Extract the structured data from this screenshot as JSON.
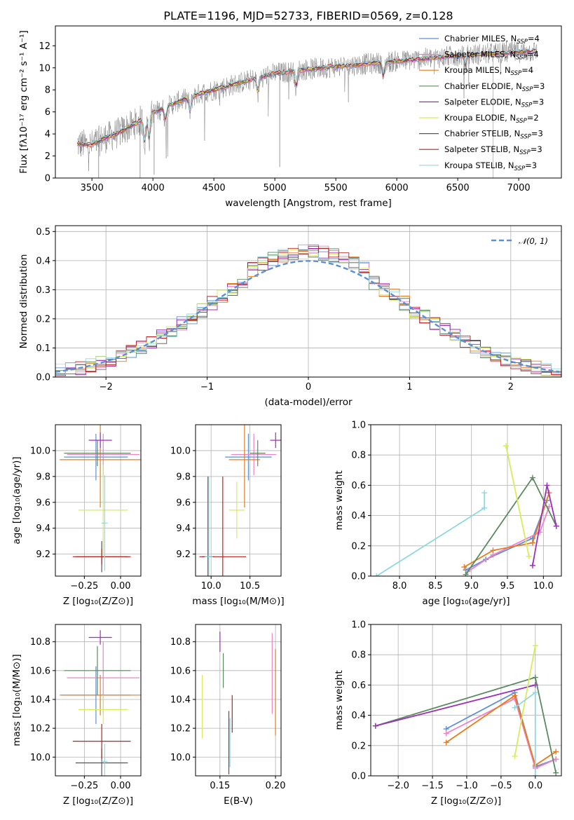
{
  "figure": {
    "title": "PLATE=1196, MJD=52733, FIBERID=0569, z=0.128",
    "colors": {
      "Chabrier MILES": "#5f8fd6",
      "Salpeter MILES": "#ee82c8",
      "Kroupa MILES": "#e87b1a",
      "Chabrier ELODIE": "#5b8a60",
      "Salpeter ELODIE": "#9b30b8",
      "Kroupa ELODIE": "#d8ec58",
      "Chabrier STELIB": "#555555",
      "Salpeter STELIB": "#c02020",
      "Kroupa STELIB": "#8fd8e0",
      "gaussian": "#5b8fd6",
      "spectrum": "#808080"
    }
  },
  "chart_data": [
    {
      "id": "spectrum",
      "type": "line",
      "title": "PLATE=1196, MJD=52733, FIBERID=0569, z=0.128",
      "xlabel": "wavelength [Angstrom, rest frame]",
      "ylabel": "Flux [fλ10⁻¹⁷ erg cm⁻² s⁻¹ A⁻¹]",
      "xlim": [
        3200,
        7350
      ],
      "ylim": [
        0,
        13.8
      ],
      "xticks": [
        3500,
        4000,
        4500,
        5000,
        5500,
        6000,
        6500,
        7000
      ],
      "yticks": [
        0,
        2,
        4,
        6,
        8,
        10,
        12
      ],
      "legend_position": "top-right",
      "legend": [
        {
          "base": "Chabrier MILES, N",
          "n": "4"
        },
        {
          "base": "Salpeter MILES, N",
          "n": "4"
        },
        {
          "base": "Kroupa MILES, N",
          "n": "4"
        },
        {
          "base": "Chabrier ELODIE, N",
          "n": "3"
        },
        {
          "base": "Salpeter ELODIE, N",
          "n": "3"
        },
        {
          "base": "Kroupa ELODIE, N",
          "n": "2"
        },
        {
          "base": "Chabrier STELIB, N",
          "n": "3"
        },
        {
          "base": "Salpeter STELIB, N",
          "n": "3"
        },
        {
          "base": "Kroupa STELIB, N",
          "n": "3"
        }
      ],
      "continuum": {
        "x": [
          3380,
          3500,
          3600,
          3700,
          3800,
          3900,
          4000,
          4100,
          4200,
          4300,
          4400,
          4500,
          4600,
          4700,
          4800,
          4900,
          5000,
          5100,
          5200,
          5300,
          5400,
          5500,
          5600,
          5700,
          5800,
          5900,
          6000,
          6200,
          6400,
          6600,
          6800,
          7000,
          7150
        ],
        "y": [
          3.1,
          3.0,
          3.6,
          4.0,
          4.6,
          5.2,
          5.9,
          6.4,
          6.9,
          7.3,
          7.7,
          8.0,
          8.3,
          8.6,
          8.9,
          9.2,
          9.5,
          9.6,
          9.8,
          9.9,
          10.0,
          10.1,
          10.2,
          10.3,
          10.4,
          10.5,
          10.6,
          10.8,
          11.0,
          11.2,
          11.3,
          11.4,
          11.5
        ]
      }
    },
    {
      "id": "residuals",
      "type": "histogram",
      "xlabel": "(data-model)/error",
      "ylabel": "Normed distribution",
      "xlim": [
        -2.5,
        2.5
      ],
      "ylim": [
        0,
        0.52
      ],
      "xticks": [
        -2,
        -1,
        0,
        1,
        2
      ],
      "yticks": [
        0.0,
        0.1,
        0.2,
        0.3,
        0.4,
        0.5
      ],
      "legend_position": "top-right",
      "gaussian_label": "𝒩(0, 1)",
      "bin_width": 0.1
    },
    {
      "id": "age_vs_Z",
      "type": "errorbar",
      "xlabel": "Z [log₁₀(Z/Z⊙)]",
      "ylabel": "age  [log₁₀(age/yr)]",
      "xlim": [
        -0.45,
        0.14
      ],
      "ylim": [
        9.03,
        10.2
      ],
      "xticks": [
        -0.25,
        0.0
      ],
      "yticks": [
        9.2,
        9.4,
        9.6,
        9.8,
        10.0
      ],
      "points": [
        {
          "model": "Chabrier MILES",
          "x": -0.17,
          "y": 9.95,
          "xerr": 0.22,
          "yerr": 0.18
        },
        {
          "model": "Salpeter MILES",
          "x": -0.12,
          "y": 9.97,
          "xerr": 0.25,
          "yerr": 0.16
        },
        {
          "model": "Kroupa MILES",
          "x": -0.14,
          "y": 9.93,
          "xerr": 0.28,
          "yerr": 0.37
        },
        {
          "model": "Chabrier ELODIE",
          "x": -0.16,
          "y": 9.98,
          "xerr": 0.23,
          "yerr": 0.1
        },
        {
          "model": "Salpeter ELODIE",
          "x": -0.14,
          "y": 10.08,
          "xerr": 0.08,
          "yerr": 0.06
        },
        {
          "model": "Kroupa ELODIE",
          "x": -0.12,
          "y": 9.54,
          "xerr": 0.17,
          "yerr": 0.35
        },
        {
          "model": "Chabrier STELIB",
          "x": -0.13,
          "y": 9.18,
          "xerr": 0.18,
          "yerr": 0.12
        },
        {
          "model": "Salpeter STELIB",
          "x": -0.13,
          "y": 9.18,
          "xerr": 0.2,
          "yerr": 0.06
        },
        {
          "model": "Kroupa STELIB",
          "x": -0.11,
          "y": 9.44,
          "xerr": 0.02,
          "yerr": 0.37
        }
      ]
    },
    {
      "id": "age_vs_mass",
      "type": "errorbar",
      "xlabel": "mass [log₁₀(M/M⊙)]",
      "xlim": [
        9.8,
        10.9
      ],
      "ylim": [
        9.03,
        10.2
      ],
      "xticks": [
        10.0,
        10.5
      ],
      "yticks": [
        9.2,
        9.4,
        9.6,
        9.8,
        10.0
      ],
      "points": [
        {
          "model": "Chabrier MILES",
          "x": 10.48,
          "y": 9.95,
          "xerr": 0.3,
          "yerr": 0.18
        },
        {
          "model": "Salpeter MILES",
          "x": 10.55,
          "y": 9.97,
          "xerr": 0.29,
          "yerr": 0.16
        },
        {
          "model": "Kroupa MILES",
          "x": 10.43,
          "y": 9.93,
          "xerr": 0.2,
          "yerr": 0.37
        },
        {
          "model": "Chabrier ELODIE",
          "x": 10.6,
          "y": 9.98,
          "xerr": 0.1,
          "yerr": 0.1
        },
        {
          "model": "Salpeter ELODIE",
          "x": 10.83,
          "y": 10.08,
          "xerr": 0.07,
          "yerr": 0.06
        },
        {
          "model": "Kroupa ELODIE",
          "x": 10.33,
          "y": 9.54,
          "xerr": 0.1,
          "yerr": 0.22
        },
        {
          "model": "Chabrier STELIB",
          "x": 9.96,
          "y": 9.18,
          "xerr": 0.08,
          "yerr": 0.62
        },
        {
          "model": "Salpeter STELIB",
          "x": 10.15,
          "y": 9.18,
          "xerr": 0.3,
          "yerr": 0.62
        },
        {
          "model": "Kroupa STELIB",
          "x": 9.97,
          "y": 9.18,
          "xerr": 0.05,
          "yerr": 0.62
        }
      ]
    },
    {
      "id": "weight_vs_age",
      "type": "line",
      "xlabel": "age  [log₁₀(age/yr)]",
      "ylabel": "mass weight",
      "xlim": [
        7.6,
        10.25
      ],
      "ylim": [
        0,
        1.0
      ],
      "xticks": [
        8.0,
        8.5,
        9.0,
        9.5,
        10.0
      ],
      "yticks": [
        0.0,
        0.2,
        0.4,
        0.6,
        0.8,
        1.0
      ],
      "series": [
        {
          "model": "Kroupa STELIB",
          "x": [
            7.68,
            9.18,
            9.18
          ],
          "y": [
            0.0,
            0.45,
            0.55
          ]
        },
        {
          "model": "Chabrier MILES",
          "x": [
            8.92,
            9.2,
            9.85,
            10.05
          ],
          "y": [
            0.04,
            0.11,
            0.25,
            0.5
          ]
        },
        {
          "model": "Salpeter MILES",
          "x": [
            8.95,
            9.3,
            9.95,
            10.08
          ],
          "y": [
            0.03,
            0.14,
            0.29,
            0.46
          ]
        },
        {
          "model": "Kroupa MILES",
          "x": [
            8.9,
            9.3,
            9.85,
            10.08
          ],
          "y": [
            0.06,
            0.17,
            0.22,
            0.55
          ]
        },
        {
          "model": "Chabrier ELODIE",
          "x": [
            8.92,
            9.85,
            10.18
          ],
          "y": [
            0.01,
            0.65,
            0.33
          ]
        },
        {
          "model": "Salpeter ELODIE",
          "x": [
            9.85,
            10.05,
            10.18
          ],
          "y": [
            0.07,
            0.6,
            0.33
          ]
        },
        {
          "model": "Kroupa ELODIE",
          "x": [
            9.48,
            9.8
          ],
          "y": [
            0.86,
            0.13
          ]
        }
      ]
    },
    {
      "id": "mass_vs_Z",
      "type": "errorbar",
      "xlabel": "Z [log₁₀(Z/Z⊙)]",
      "ylabel": "mass [log₁₀(M/M⊙)]",
      "xlim": [
        -0.45,
        0.14
      ],
      "ylim": [
        9.87,
        10.92
      ],
      "xticks": [
        -0.25,
        0.0
      ],
      "yticks": [
        10.0,
        10.2,
        10.4,
        10.6,
        10.8
      ],
      "points": [
        {
          "model": "Chabrier MILES",
          "x": -0.17,
          "y": 10.43,
          "xerr": 0.24,
          "yerr": 0.2
        },
        {
          "model": "Salpeter MILES",
          "x": -0.12,
          "y": 10.55,
          "xerr": 0.25,
          "yerr": 0.25
        },
        {
          "model": "Kroupa MILES",
          "x": -0.14,
          "y": 10.43,
          "xerr": 0.28,
          "yerr": 0.14
        },
        {
          "model": "Chabrier ELODIE",
          "x": -0.16,
          "y": 10.6,
          "xerr": 0.23,
          "yerr": 0.17
        },
        {
          "model": "Salpeter ELODIE",
          "x": -0.14,
          "y": 10.83,
          "xerr": 0.08,
          "yerr": 0.05
        },
        {
          "model": "Kroupa ELODIE",
          "x": -0.12,
          "y": 10.33,
          "xerr": 0.17,
          "yerr": 0.1
        },
        {
          "model": "Chabrier STELIB",
          "x": -0.13,
          "y": 9.96,
          "xerr": 0.18,
          "yerr": 0.1
        },
        {
          "model": "Salpeter STELIB",
          "x": -0.13,
          "y": 10.11,
          "xerr": 0.2,
          "yerr": 0.12
        },
        {
          "model": "Kroupa STELIB",
          "x": -0.11,
          "y": 9.97,
          "xerr": 0.02,
          "yerr": 0.12
        }
      ]
    },
    {
      "id": "mass_vs_ebv",
      "type": "errorbar",
      "xlabel": "E(B-V)",
      "xlim": [
        0.128,
        0.205
      ],
      "ylim": [
        9.87,
        10.92
      ],
      "xticks": [
        0.15,
        0.2
      ],
      "yticks": [
        10.0,
        10.2,
        10.4,
        10.6,
        10.8
      ],
      "points": [
        {
          "model": "Kroupa ELODIE",
          "x": 0.134,
          "y": 10.35,
          "yerr": 0.22
        },
        {
          "model": "Salpeter ELODIE",
          "x": 0.15,
          "y": 10.8,
          "yerr": 0.07
        },
        {
          "model": "Chabrier ELODIE",
          "x": 0.153,
          "y": 10.6,
          "yerr": 0.12
        },
        {
          "model": "Chabrier STELIB",
          "x": 0.158,
          "y": 10.1,
          "yerr": 0.22
        },
        {
          "model": "Kroupa STELIB",
          "x": 0.159,
          "y": 10.1,
          "yerr": 0.17
        },
        {
          "model": "Salpeter STELIB",
          "x": 0.161,
          "y": 10.3,
          "yerr": 0.13
        },
        {
          "model": "Salpeter MILES",
          "x": 0.197,
          "y": 10.58,
          "yerr": 0.28
        },
        {
          "model": "Kroupa MILES",
          "x": 0.2,
          "y": 10.45,
          "yerr": 0.3
        }
      ]
    },
    {
      "id": "weight_vs_Z",
      "type": "line",
      "xlabel": "Z [log₁₀(Z/Z⊙)]",
      "ylabel": "mass weight",
      "xlim": [
        -2.4,
        0.38
      ],
      "ylim": [
        0,
        1.0
      ],
      "xticks": [
        -2.0,
        -1.5,
        -1.0,
        -0.5,
        0.0
      ],
      "yticks": [
        0.0,
        0.2,
        0.4,
        0.6,
        0.8,
        1.0
      ],
      "series": [
        {
          "model": "Chabrier MILES",
          "x": [
            -1.3,
            -0.3,
            0.0,
            0.3
          ],
          "y": [
            0.31,
            0.55,
            0.06,
            0.11
          ]
        },
        {
          "model": "Salpeter MILES",
          "x": [
            -1.3,
            -0.3,
            0.0,
            0.3
          ],
          "y": [
            0.28,
            0.51,
            0.05,
            0.11
          ]
        },
        {
          "model": "Kroupa MILES",
          "x": [
            -1.3,
            -0.3,
            0.0,
            0.3
          ],
          "y": [
            0.22,
            0.53,
            0.07,
            0.16
          ]
        },
        {
          "model": "Chabrier ELODIE",
          "x": [
            -2.33,
            0.0,
            0.3
          ],
          "y": [
            0.33,
            0.65,
            0.02
          ]
        },
        {
          "model": "Salpeter ELODIE",
          "x": [
            -2.33,
            0.0
          ],
          "y": [
            0.33,
            0.6
          ]
        },
        {
          "model": "Kroupa ELODIE",
          "x": [
            -0.3,
            0.0
          ],
          "y": [
            0.13,
            0.86
          ]
        },
        {
          "model": "Kroupa STELIB",
          "x": [
            -0.3,
            0.0,
            0.0
          ],
          "y": [
            0.45,
            0.55,
            0.0
          ]
        }
      ]
    }
  ]
}
